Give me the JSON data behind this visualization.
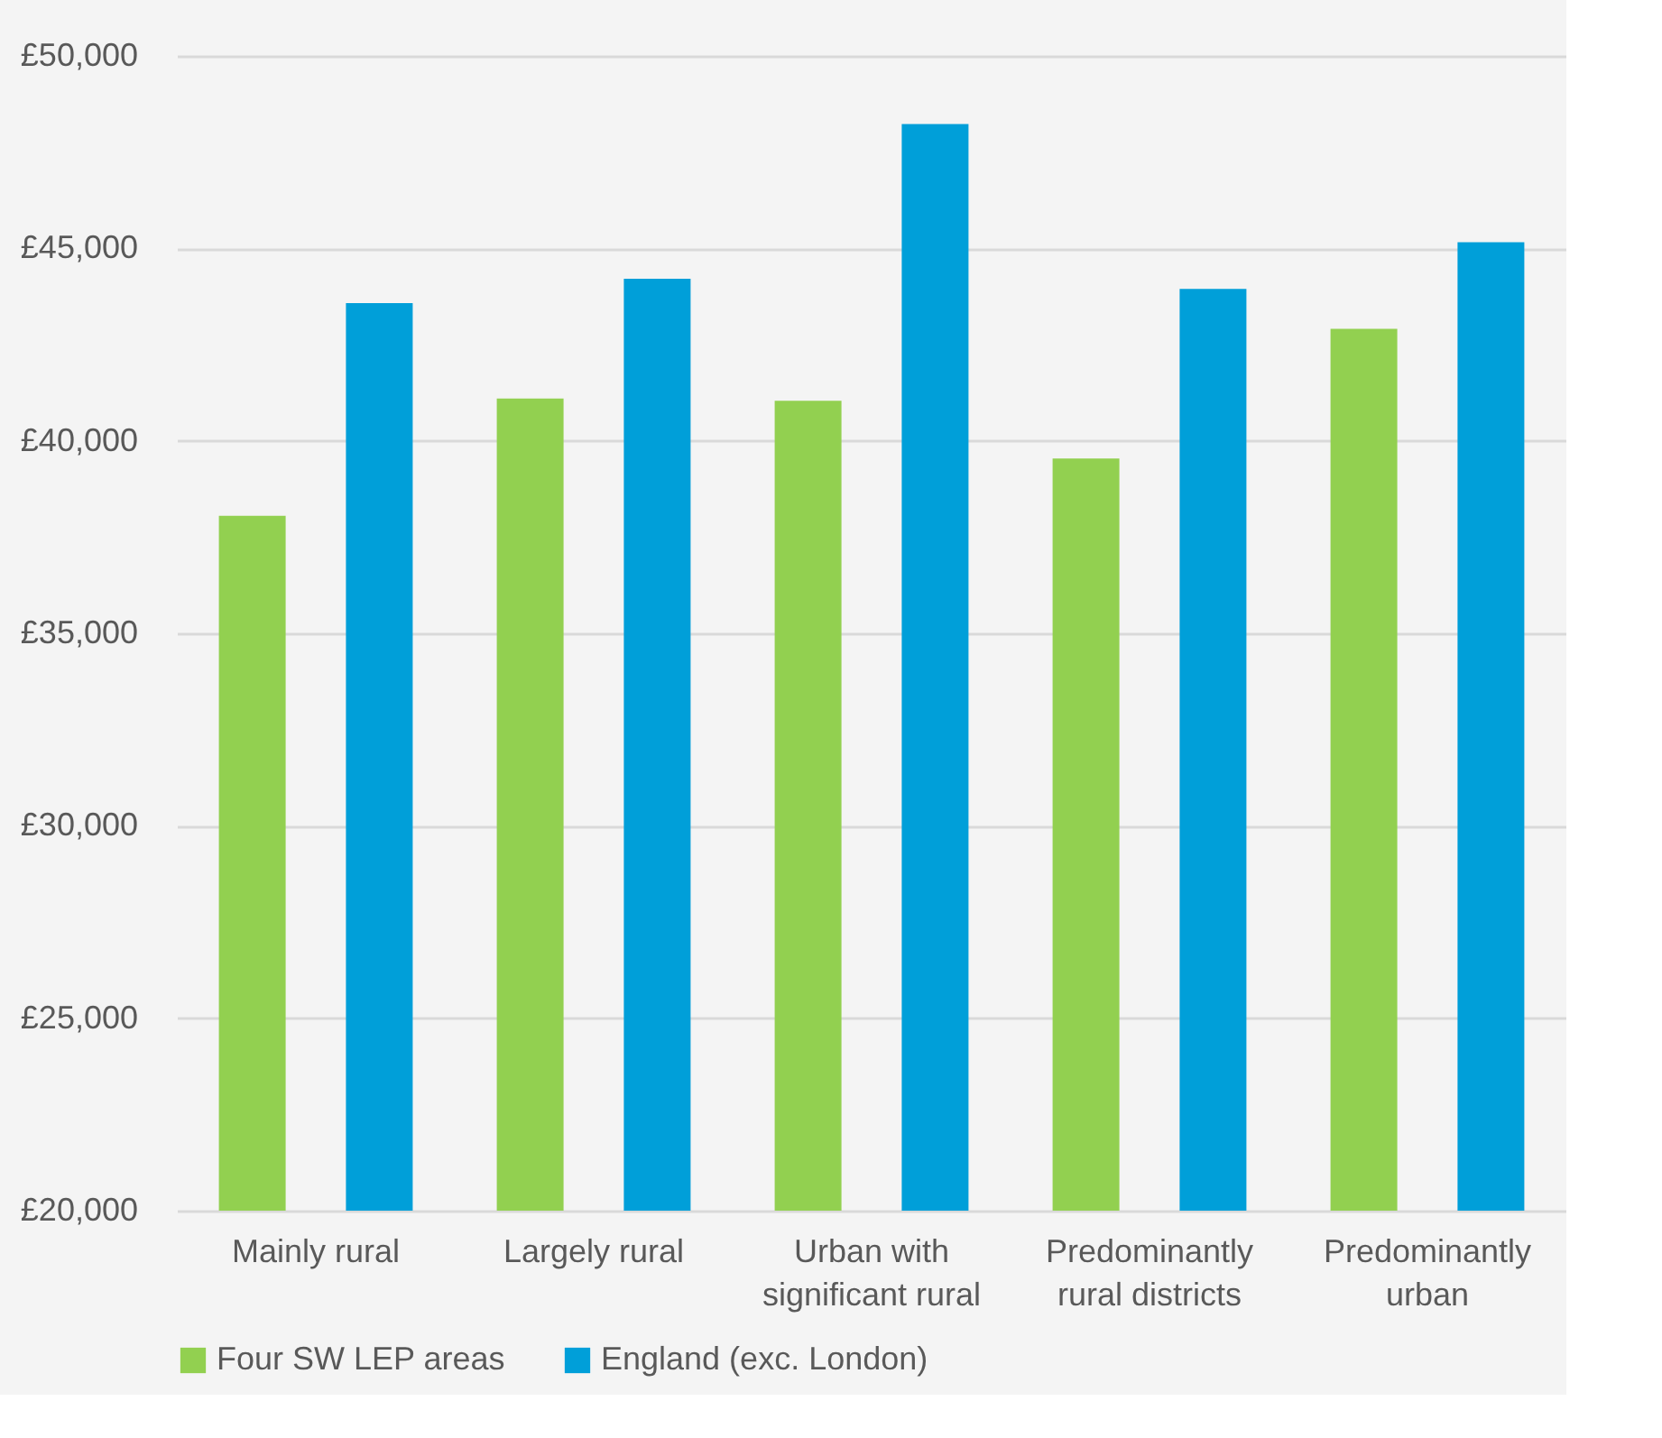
{
  "chart_data": {
    "type": "bar",
    "categories": [
      "Mainly rural",
      "Largely rural",
      "Urban with significant rural",
      "Predominantly rural districts",
      "Predominantly urban"
    ],
    "series": [
      {
        "name": "Four SW LEP areas",
        "color": "#92d050",
        "values": [
          38050,
          41100,
          41040,
          39540,
          42910
        ]
      },
      {
        "name": "England (exc. London)",
        "color": "#009fd9",
        "values": [
          43580,
          44210,
          48230,
          43950,
          45160
        ]
      }
    ],
    "ylim": [
      20000,
      50000
    ],
    "yticks": [
      {
        "value": 20000,
        "label": "£20,000"
      },
      {
        "value": 25000,
        "label": "£25,000"
      },
      {
        "value": 30000,
        "label": "£30,000"
      },
      {
        "value": 35000,
        "label": "£35,000"
      },
      {
        "value": 40000,
        "label": "£40,000"
      },
      {
        "value": 45000,
        "label": "£45,000"
      },
      {
        "value": 50000,
        "label": "£50,000"
      }
    ],
    "grid": "y",
    "legend": "bottom"
  }
}
